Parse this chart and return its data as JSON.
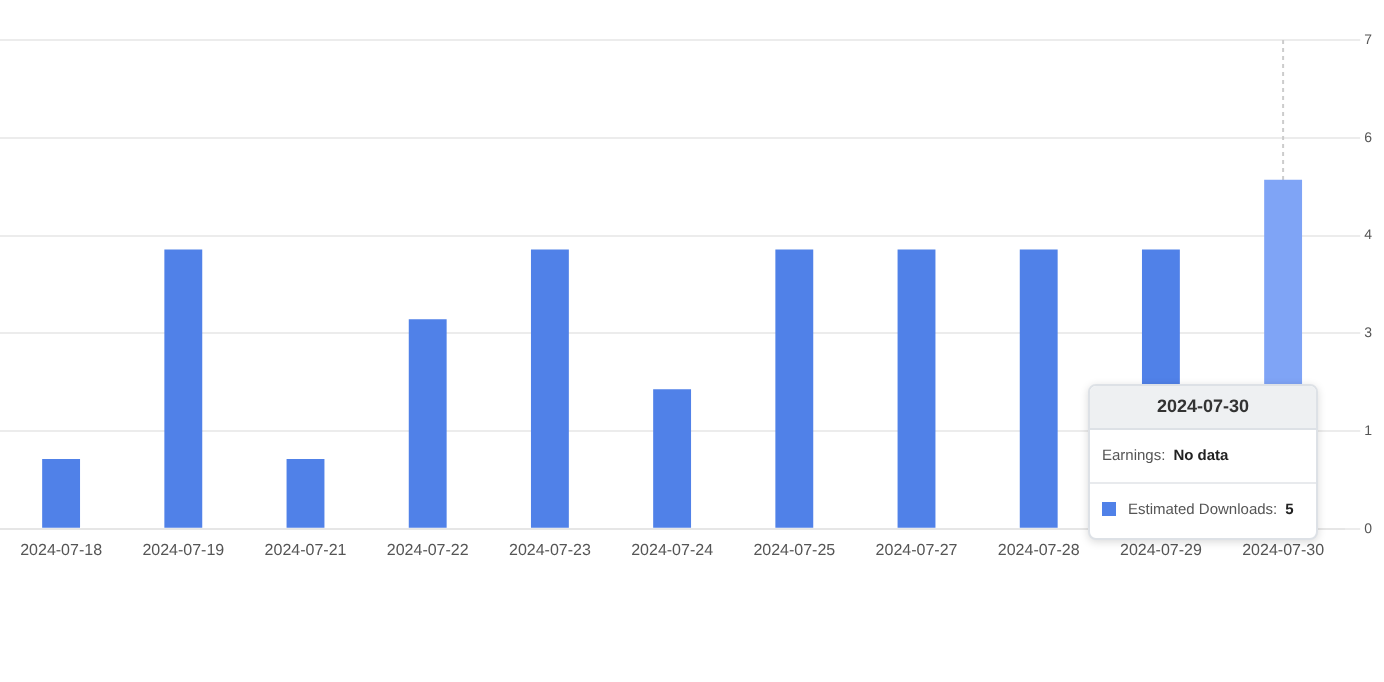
{
  "chart_data": {
    "type": "bar",
    "categories": [
      "2024-07-18",
      "2024-07-19",
      "2024-07-21",
      "2024-07-22",
      "2024-07-23",
      "2024-07-24",
      "2024-07-25",
      "2024-07-27",
      "2024-07-28",
      "2024-07-29",
      "2024-07-30"
    ],
    "values": [
      1,
      4,
      1,
      3,
      4,
      2,
      4,
      4,
      4,
      4,
      5
    ],
    "colors": [
      "#5081e8",
      "#5081e8",
      "#5081e8",
      "#5081e8",
      "#5081e8",
      "#5081e8",
      "#5081e8",
      "#5081e8",
      "#5081e8",
      "#5081e8",
      "#7fa4f6"
    ],
    "ylim": [
      0,
      7
    ],
    "yticks": [
      0,
      {
        "value": 1.4,
        "label": "1"
      },
      {
        "value": 2.8,
        "label": "3"
      },
      {
        "value": 4.2,
        "label": "4"
      },
      {
        "value": 5.6,
        "label": "6"
      },
      7
    ],
    "grid": "y",
    "ref_lines": [
      {
        "axis": "x",
        "value": "2024-07-30",
        "color": "#cccccc",
        "line_style": "dotted"
      }
    ],
    "annotations": [
      "2024-07-30",
      "Earnings:",
      "No data",
      "Estimated Downloads:",
      "5"
    ]
  }
}
